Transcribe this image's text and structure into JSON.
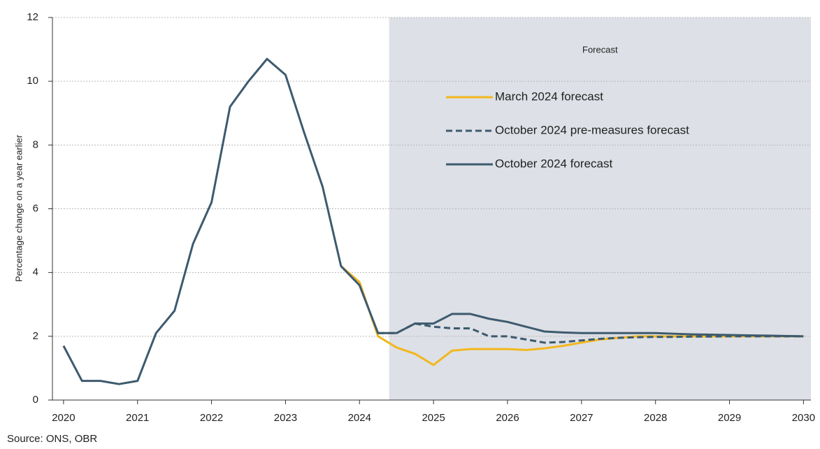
{
  "chart_data": {
    "type": "line",
    "y_label": "Percentage change on a year earlier",
    "source": "Source: ONS, OBR",
    "forecast_region": {
      "label": "Forecast",
      "start": 2024.4
    },
    "x": [
      2020,
      2020.25,
      2020.5,
      2020.75,
      2021,
      2021.25,
      2021.5,
      2021.75,
      2022,
      2022.25,
      2022.5,
      2022.75,
      2023,
      2023.25,
      2023.5,
      2023.75,
      2024,
      2024.25,
      2024.5,
      2024.75,
      2025,
      2025.25,
      2025.5,
      2025.75,
      2026,
      2026.25,
      2026.5,
      2026.75,
      2027,
      2027.25,
      2027.5,
      2027.75,
      2028,
      2028.25,
      2028.5,
      2028.75,
      2029,
      2029.25,
      2029.5,
      2029.75,
      2030
    ],
    "series": [
      {
        "name": "March 2024 forecast",
        "color": "#f2b71d",
        "dash": false,
        "values": [
          null,
          null,
          null,
          null,
          null,
          null,
          null,
          null,
          null,
          null,
          null,
          null,
          null,
          null,
          null,
          4.2,
          3.7,
          2.0,
          1.65,
          1.45,
          1.1,
          1.55,
          1.6,
          1.6,
          1.6,
          1.57,
          1.62,
          1.7,
          1.8,
          1.9,
          1.95,
          2.0,
          2.0,
          2.0,
          2.0,
          2.0,
          2.0,
          2.0,
          2.0,
          2.0,
          2.0
        ]
      },
      {
        "name": "October 2024 pre-measures forecast",
        "color": "#3d5a6e",
        "dash": true,
        "values": [
          null,
          null,
          null,
          null,
          null,
          null,
          null,
          null,
          null,
          null,
          null,
          null,
          null,
          null,
          null,
          null,
          null,
          2.1,
          2.1,
          2.4,
          2.3,
          2.25,
          2.25,
          2.0,
          2.0,
          1.9,
          1.8,
          1.82,
          1.87,
          1.92,
          1.95,
          1.97,
          1.98,
          1.98,
          1.99,
          1.99,
          2.0,
          2.0,
          2.0,
          2.0,
          2.0
        ]
      },
      {
        "name": "October 2024 forecast",
        "color": "#3d5a6e",
        "dash": false,
        "values": [
          1.7,
          0.6,
          0.6,
          0.5,
          0.6,
          2.1,
          2.8,
          4.9,
          6.2,
          9.2,
          10.0,
          10.7,
          10.2,
          8.4,
          6.7,
          4.2,
          3.6,
          2.1,
          2.1,
          2.4,
          2.4,
          2.7,
          2.7,
          2.55,
          2.45,
          2.3,
          2.15,
          2.12,
          2.1,
          2.1,
          2.1,
          2.1,
          2.1,
          2.08,
          2.06,
          2.05,
          2.04,
          2.03,
          2.02,
          2.01,
          2.0
        ]
      }
    ],
    "xlim": [
      2019.85,
      2030.1
    ],
    "xticks": [
      2020,
      2021,
      2022,
      2023,
      2024,
      2025,
      2026,
      2027,
      2028,
      2029,
      2030
    ],
    "ylim": [
      0,
      12
    ],
    "yticks": [
      0,
      2,
      4,
      6,
      8,
      10,
      12
    ],
    "grid": true
  }
}
